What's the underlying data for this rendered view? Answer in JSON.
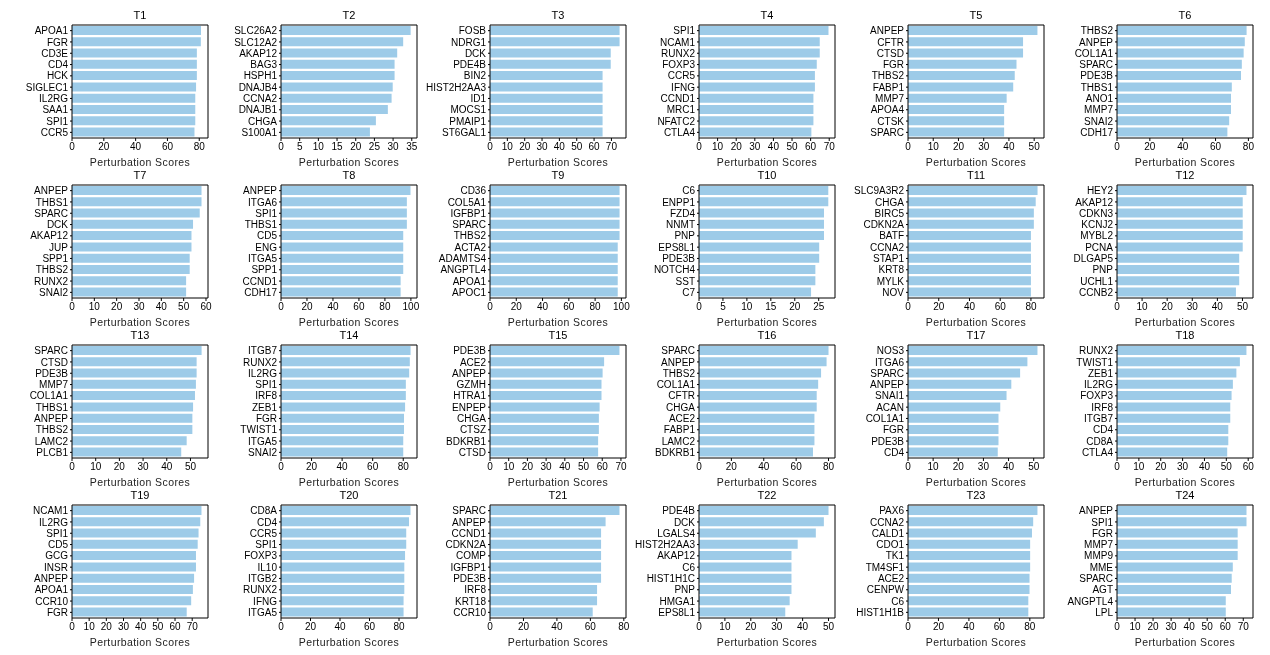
{
  "chart_data": [
    {
      "type": "bar",
      "orientation": "horizontal",
      "title": "T1",
      "xlabel": "Perturbation Scores",
      "color": "#9dcbe8",
      "categories": [
        "APOA1",
        "FGR",
        "CD3E",
        "CD4",
        "HCK",
        "SIGLEC1",
        "IL2RG",
        "SAA1",
        "SPI1",
        "CCR5"
      ],
      "values": [
        81.1,
        81,
        78.5,
        78.5,
        78.5,
        78,
        77.5,
        77.5,
        77.5,
        77
      ],
      "xlim": [
        0,
        85.5
      ],
      "xticks": [
        0,
        20,
        40,
        60,
        80
      ]
    },
    {
      "type": "bar",
      "orientation": "horizontal",
      "title": "T2",
      "xlabel": "Perturbation Scores",
      "color": "#9dcbe8",
      "categories": [
        "SLC26A2",
        "SLC12A2",
        "AKAP12",
        "BAG3",
        "HSPH1",
        "DNAJB4",
        "CCNA2",
        "DNAJB1",
        "CHGA",
        "S100A1"
      ],
      "values": [
        34.7,
        32.7,
        31.1,
        30.4,
        30.4,
        29.9,
        29.6,
        28.6,
        25.4,
        23.8
      ],
      "xlim": [
        0,
        36.4
      ],
      "xticks": [
        0,
        5,
        10,
        15,
        20,
        25,
        30,
        35
      ]
    },
    {
      "type": "bar",
      "orientation": "horizontal",
      "title": "T3",
      "xlabel": "Perturbation Scores",
      "color": "#9dcbe8",
      "categories": [
        "FOSB",
        "NDRG1",
        "DCK",
        "PDE4B",
        "BIN2",
        "HIST2H2AA3",
        "ID1",
        "MOCS1",
        "PMAIP1",
        "ST6GAL1"
      ],
      "values": [
        74.7,
        74.7,
        69.6,
        69.6,
        64.9,
        64.9,
        64.9,
        64.9,
        64.9,
        64.9
      ],
      "xlim": [
        0,
        78.4
      ],
      "xticks": [
        0,
        10,
        20,
        30,
        40,
        50,
        60,
        70
      ]
    },
    {
      "type": "bar",
      "orientation": "horizontal",
      "title": "T4",
      "xlabel": "Perturbation Scores",
      "color": "#9dcbe8",
      "categories": [
        "SPI1",
        "NCAM1",
        "RUNX2",
        "FOXP3",
        "CCR5",
        "IFNG",
        "CCND1",
        "MRC1",
        "NFATC2",
        "CTLA4"
      ],
      "values": [
        69.6,
        64.9,
        64.9,
        63.3,
        62.3,
        62.3,
        61.5,
        61.5,
        61.5,
        60.4
      ],
      "xlim": [
        0,
        73.1
      ],
      "xticks": [
        0,
        10,
        20,
        30,
        40,
        50,
        60,
        70
      ]
    },
    {
      "type": "bar",
      "orientation": "horizontal",
      "title": "T5",
      "xlabel": "Perturbation Scores",
      "color": "#9dcbe8",
      "categories": [
        "ANPEP",
        "CFTR",
        "CTSD",
        "FGR",
        "THBS2",
        "FABP1",
        "MMP7",
        "APOA4",
        "CTSK",
        "SPARC"
      ],
      "values": [
        51.3,
        45.6,
        45.6,
        43,
        42.3,
        41.7,
        39.1,
        38.1,
        38.1,
        38.1
      ],
      "xlim": [
        0,
        53.9
      ],
      "xticks": [
        0,
        10,
        20,
        30,
        40,
        50
      ]
    },
    {
      "type": "bar",
      "orientation": "horizontal",
      "title": "T6",
      "xlabel": "Perturbation Scores",
      "color": "#9dcbe8",
      "categories": [
        "THBS2",
        "ANPEP",
        "COL1A1",
        "SPARC",
        "PDE3B",
        "THBS1",
        "ANO1",
        "MMP7",
        "SNAI2",
        "CDH17"
      ],
      "values": [
        78.9,
        77.8,
        77.1,
        76,
        75.5,
        69.9,
        69.4,
        69.4,
        68.3,
        67.2
      ],
      "xlim": [
        0,
        82.8
      ],
      "xticks": [
        0,
        20,
        40,
        60,
        80
      ]
    },
    {
      "type": "bar",
      "orientation": "horizontal",
      "title": "T7",
      "xlabel": "Perturbation Scores",
      "color": "#9dcbe8",
      "categories": [
        "ANPEP",
        "THBS1",
        "SPARC",
        "DCK",
        "AKAP12",
        "JUP",
        "SPP1",
        "THBS2",
        "RUNX2",
        "SNAI2"
      ],
      "values": [
        58,
        58,
        57.2,
        54.2,
        53.5,
        53.5,
        52.7,
        52.7,
        51.1,
        51.1
      ],
      "xlim": [
        0,
        60.9
      ],
      "xticks": [
        0,
        10,
        20,
        30,
        40,
        50,
        60
      ]
    },
    {
      "type": "bar",
      "orientation": "horizontal",
      "title": "T8",
      "xlabel": "Perturbation Scores",
      "color": "#9dcbe8",
      "categories": [
        "ANPEP",
        "ITGA6",
        "SPI1",
        "THBS1",
        "CD5",
        "ENG",
        "ITGA5",
        "SPP1",
        "CCND1",
        "CDH17"
      ],
      "values": [
        99.7,
        96.9,
        96.9,
        96.9,
        94.1,
        94.1,
        94.1,
        94.1,
        92.1,
        92.1
      ],
      "xlim": [
        0,
        104.7
      ],
      "xticks": [
        0,
        20,
        40,
        60,
        80,
        100
      ]
    },
    {
      "type": "bar",
      "orientation": "horizontal",
      "title": "T9",
      "xlabel": "Perturbation Scores",
      "color": "#9dcbe8",
      "categories": [
        "CD36",
        "COL5A1",
        "IGFBP1",
        "SPARC",
        "THBS2",
        "ACTA2",
        "ADAMTS4",
        "ANGPTL4",
        "APOA1",
        "APOC1"
      ],
      "values": [
        98.6,
        98.6,
        98.6,
        98.6,
        98.6,
        97.2,
        97.2,
        97.2,
        97.2,
        97.2
      ],
      "xlim": [
        0,
        103.5
      ],
      "xticks": [
        0,
        20,
        40,
        60,
        80,
        100
      ]
    },
    {
      "type": "bar",
      "orientation": "horizontal",
      "title": "T10",
      "xlabel": "Perturbation Scores",
      "color": "#9dcbe8",
      "categories": [
        "C6",
        "ENPP1",
        "FZD4",
        "NNMT",
        "PNP",
        "EPS8L1",
        "PDE3B",
        "NOTCH4",
        "SST",
        "C7"
      ],
      "values": [
        27,
        27,
        26.1,
        26.1,
        26.1,
        25.1,
        25.1,
        24.3,
        24.3,
        23.4
      ],
      "xlim": [
        0,
        28.4
      ],
      "xticks": [
        0,
        5,
        10,
        15,
        20,
        25
      ]
    },
    {
      "type": "bar",
      "orientation": "horizontal",
      "title": "T11",
      "xlabel": "Perturbation Scores",
      "color": "#9dcbe8",
      "categories": [
        "SLC9A3R2",
        "CHGA",
        "BIRC5",
        "CDKN2A",
        "BATF",
        "CCNA2",
        "STAP1",
        "KRT8",
        "MYLK",
        "NOV"
      ],
      "values": [
        84.3,
        83.1,
        81.9,
        81.9,
        80,
        80,
        80,
        80,
        80,
        80
      ],
      "xlim": [
        0,
        88.5
      ],
      "xticks": [
        0,
        20,
        40,
        60,
        80
      ]
    },
    {
      "type": "bar",
      "orientation": "horizontal",
      "title": "T12",
      "xlabel": "Perturbation Scores",
      "color": "#9dcbe8",
      "categories": [
        "HEY2",
        "AKAP12",
        "CDKN3",
        "KCNJ2",
        "MYBL2",
        "PCNA",
        "DLGAP5",
        "PNP",
        "UCHL1",
        "CCNB2"
      ],
      "values": [
        51.6,
        50.1,
        50.1,
        50.1,
        50.1,
        50.1,
        48.7,
        48.7,
        48.7,
        47.4
      ],
      "xlim": [
        0,
        54.2
      ],
      "xticks": [
        0,
        10,
        20,
        30,
        40,
        50
      ]
    },
    {
      "type": "bar",
      "orientation": "horizontal",
      "title": "T13",
      "xlabel": "Perturbation Scores",
      "color": "#9dcbe8",
      "categories": [
        "SPARC",
        "CTSD",
        "PDE3B",
        "MMP7",
        "COL1A1",
        "THBS1",
        "ANPEP",
        "THBS2",
        "LAMC2",
        "PLCB1"
      ],
      "values": [
        54.7,
        52.6,
        52.6,
        52.3,
        51.9,
        51.1,
        50.8,
        50.8,
        48.4,
        46.1
      ],
      "xlim": [
        0,
        57.4
      ],
      "xticks": [
        0,
        10,
        20,
        30,
        40,
        50
      ]
    },
    {
      "type": "bar",
      "orientation": "horizontal",
      "title": "T14",
      "xlabel": "Perturbation Scores",
      "color": "#9dcbe8",
      "categories": [
        "ITGB7",
        "RUNX2",
        "IL2RG",
        "SPI1",
        "IRF8",
        "ZEB1",
        "FGR",
        "TWIST1",
        "ITGA5",
        "SNAI2"
      ],
      "values": [
        84.8,
        84.3,
        83.9,
        81.7,
        81.7,
        81.2,
        80.5,
        80.5,
        80,
        80
      ],
      "xlim": [
        0,
        89
      ],
      "xticks": [
        0,
        20,
        40,
        60,
        80
      ]
    },
    {
      "type": "bar",
      "orientation": "horizontal",
      "title": "T15",
      "xlabel": "Perturbation Scores",
      "color": "#9dcbe8",
      "categories": [
        "PDE3B",
        "ACE2",
        "ANPEP",
        "GZMH",
        "HTRA1",
        "ENPEP",
        "CHGA",
        "CTSZ",
        "BDKRB1",
        "CTSD"
      ],
      "values": [
        69.2,
        61,
        60.2,
        59.6,
        59.6,
        58.6,
        58.2,
        58.2,
        57.8,
        57.8
      ],
      "xlim": [
        0,
        72.7
      ],
      "xticks": [
        0,
        10,
        20,
        30,
        40,
        50,
        60,
        70
      ]
    },
    {
      "type": "bar",
      "orientation": "horizontal",
      "title": "T16",
      "xlabel": "Perturbation Scores",
      "color": "#9dcbe8",
      "categories": [
        "SPARC",
        "ANPEP",
        "THBS2",
        "COL1A1",
        "CFTR",
        "CHGA",
        "ACE2",
        "FABP1",
        "LAMC2",
        "BDKRB1"
      ],
      "values": [
        80,
        78.8,
        75.4,
        73.6,
        72.7,
        72.7,
        71.3,
        71.3,
        71.3,
        70.4
      ],
      "xlim": [
        0,
        84
      ],
      "xticks": [
        0,
        20,
        40,
        60,
        80
      ]
    },
    {
      "type": "bar",
      "orientation": "horizontal",
      "title": "T17",
      "xlabel": "Perturbation Scores",
      "color": "#9dcbe8",
      "categories": [
        "NOS3",
        "ITGA6",
        "SPARC",
        "ANPEP",
        "SNAI1",
        "ACAN",
        "COL1A1",
        "FGR",
        "PDE3B",
        "CD4"
      ],
      "values": [
        51.5,
        47.5,
        44.6,
        41.1,
        39.2,
        36.7,
        36,
        36,
        36,
        35.7
      ],
      "xlim": [
        0,
        54.1
      ],
      "xticks": [
        0,
        10,
        20,
        30,
        40,
        50
      ]
    },
    {
      "type": "bar",
      "orientation": "horizontal",
      "title": "T18",
      "xlabel": "Perturbation Scores",
      "color": "#9dcbe8",
      "categories": [
        "RUNX2",
        "TWIST1",
        "ZEB1",
        "IL2RG",
        "FOXP3",
        "IRF8",
        "ITGB7",
        "CD4",
        "CD8A",
        "CTLA4"
      ],
      "values": [
        59.2,
        56.2,
        54.6,
        53,
        52.4,
        51.8,
        51.8,
        50.9,
        50.9,
        50.4
      ],
      "xlim": [
        0,
        62.2
      ],
      "xticks": [
        0,
        10,
        20,
        30,
        40,
        50,
        60
      ]
    },
    {
      "type": "bar",
      "orientation": "horizontal",
      "title": "T19",
      "xlabel": "Perturbation Scores",
      "color": "#9dcbe8",
      "categories": [
        "NCAM1",
        "IL2RG",
        "SPI1",
        "CD5",
        "GCG",
        "INSR",
        "ANPEP",
        "APOA1",
        "CCR10",
        "FGR"
      ],
      "values": [
        75.4,
        74.7,
        73.7,
        73.2,
        72.2,
        72.2,
        71.1,
        70.4,
        69.4,
        66.8
      ],
      "xlim": [
        0,
        79.2
      ],
      "xticks": [
        0,
        10,
        20,
        30,
        40,
        50,
        60,
        70
      ]
    },
    {
      "type": "bar",
      "orientation": "horizontal",
      "title": "T20",
      "xlabel": "Perturbation Scores",
      "color": "#9dcbe8",
      "categories": [
        "CD8A",
        "CD4",
        "CCR5",
        "SPI1",
        "FOXP3",
        "IL10",
        "ITGB2",
        "RUNX2",
        "IFNG",
        "ITGA5"
      ],
      "values": [
        87.8,
        86.8,
        84.9,
        84.9,
        84.1,
        83.6,
        83.6,
        83.6,
        83.1,
        83.1
      ],
      "xlim": [
        0,
        92.2
      ],
      "xticks": [
        0,
        20,
        40,
        60,
        80
      ]
    },
    {
      "type": "bar",
      "orientation": "horizontal",
      "title": "T21",
      "xlabel": "Perturbation Scores",
      "color": "#9dcbe8",
      "categories": [
        "SPARC",
        "ANPEP",
        "CCND1",
        "CDKN2A",
        "COMP",
        "IGFBP1",
        "PDE3B",
        "IRF8",
        "KRT18",
        "CCR10"
      ],
      "values": [
        77.4,
        69.1,
        66.4,
        66.4,
        66.4,
        66.4,
        66.4,
        64,
        64,
        61.4
      ],
      "xlim": [
        0,
        81.3
      ],
      "xticks": [
        0,
        20,
        40,
        60,
        80
      ]
    },
    {
      "type": "bar",
      "orientation": "horizontal",
      "title": "T22",
      "xlabel": "Perturbation Scores",
      "color": "#9dcbe8",
      "categories": [
        "PDE4B",
        "DCK",
        "LGALS4",
        "HIST2H2AA3",
        "AKAP12",
        "C6",
        "HIST1H1C",
        "PNP",
        "HMGA1",
        "EPS8L1"
      ],
      "values": [
        50,
        48.2,
        45.1,
        38.1,
        35.7,
        35.7,
        35.7,
        35.7,
        35,
        33.3
      ],
      "xlim": [
        0,
        52.5
      ],
      "xticks": [
        0,
        10,
        20,
        30,
        40,
        50
      ]
    },
    {
      "type": "bar",
      "orientation": "horizontal",
      "title": "T23",
      "xlabel": "Perturbation Scores",
      "color": "#9dcbe8",
      "categories": [
        "PAX6",
        "CCNA2",
        "CALD1",
        "CDO1",
        "TK1",
        "TM4SF1",
        "ACE2",
        "CENPW",
        "C6",
        "HIST1H1B"
      ],
      "values": [
        85,
        82.2,
        81.4,
        80.2,
        80.2,
        80.2,
        79.8,
        79.8,
        79,
        79
      ],
      "xlim": [
        0,
        89.3
      ],
      "xticks": [
        0,
        20,
        40,
        60,
        80
      ]
    },
    {
      "type": "bar",
      "orientation": "horizontal",
      "title": "T24",
      "xlabel": "Perturbation Scores",
      "color": "#9dcbe8",
      "categories": [
        "ANPEP",
        "SPI1",
        "FGR",
        "MMP7",
        "MMP9",
        "MME",
        "SPARC",
        "AGT",
        "ANGPTL4",
        "LPL"
      ],
      "values": [
        71.8,
        71.8,
        66.9,
        66.9,
        66.9,
        64.2,
        63.6,
        63.2,
        60.3,
        60.3
      ],
      "xlim": [
        0,
        75.4
      ],
      "xticks": [
        0,
        10,
        20,
        30,
        40,
        50,
        60,
        70
      ]
    }
  ]
}
